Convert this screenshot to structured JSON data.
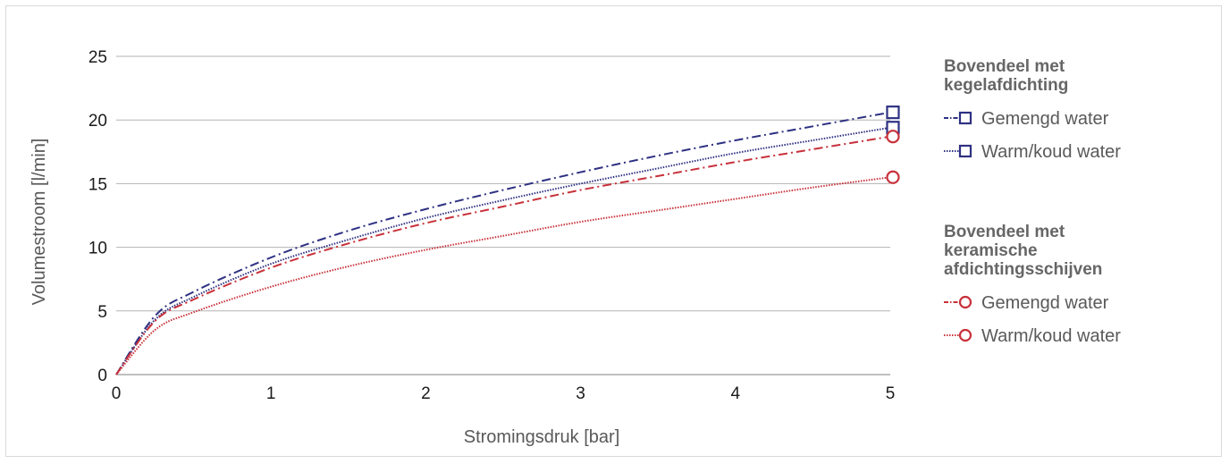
{
  "chart_data": {
    "type": "line",
    "title": "",
    "xlabel": "Stromingsdruk [bar]",
    "ylabel": "Volumestroom [l/min]",
    "xlim": [
      0,
      5
    ],
    "ylim": [
      0,
      25
    ],
    "x_ticks": [
      "0",
      "1",
      "2",
      "3",
      "4",
      "5"
    ],
    "y_ticks": [
      "0",
      "5",
      "10",
      "15",
      "20",
      "25"
    ],
    "grid": "horizontal",
    "legend_position": "right",
    "colors": {
      "navy": "#2e3182",
      "red": "#c8313a"
    },
    "legend_groups": [
      {
        "title": [
          "Bovendeel met",
          "kegelafdichting"
        ],
        "series": [
          0,
          1
        ]
      },
      {
        "title": [
          "Bovendeel met",
          "keramische",
          "afdichtingsschijven"
        ],
        "series": [
          2,
          3
        ]
      }
    ],
    "series": [
      {
        "name": "Gemengd water",
        "color": "#2e3182",
        "marker": "square",
        "dash": "dashdot",
        "x": [
          0,
          0.25,
          0.5,
          1,
          1.5,
          2,
          2.5,
          3,
          3.5,
          4,
          4.5,
          5
        ],
        "y": [
          0,
          4.6,
          6.5,
          9.2,
          11.3,
          13.0,
          14.5,
          15.9,
          17.2,
          18.4,
          19.5,
          20.6
        ]
      },
      {
        "name": "Warm/koud water",
        "color": "#2e3182",
        "marker": "square",
        "dash": "dotted",
        "x": [
          0,
          0.25,
          0.5,
          1,
          1.5,
          2,
          2.5,
          3,
          3.5,
          4,
          4.5,
          5
        ],
        "y": [
          0,
          4.3,
          6.1,
          8.7,
          10.6,
          12.3,
          13.7,
          15.0,
          16.2,
          17.4,
          18.4,
          19.4
        ]
      },
      {
        "name": "Gemengd water",
        "color": "#c8313a",
        "marker": "circle",
        "dash": "dashdot",
        "x": [
          0,
          0.25,
          0.5,
          1,
          1.5,
          2,
          2.5,
          3,
          3.5,
          4,
          4.5,
          5
        ],
        "y": [
          0,
          4.2,
          5.9,
          8.4,
          10.3,
          11.9,
          13.2,
          14.5,
          15.6,
          16.7,
          17.7,
          18.7
        ]
      },
      {
        "name": "Warm/koud water",
        "color": "#c8313a",
        "marker": "circle",
        "dash": "dotted",
        "x": [
          0,
          0.25,
          0.5,
          1,
          1.5,
          2,
          2.5,
          3,
          3.5,
          4,
          4.5,
          5
        ],
        "y": [
          0,
          3.5,
          4.9,
          6.9,
          8.5,
          9.8,
          10.9,
          12.0,
          12.9,
          13.8,
          14.7,
          15.5
        ]
      }
    ]
  }
}
